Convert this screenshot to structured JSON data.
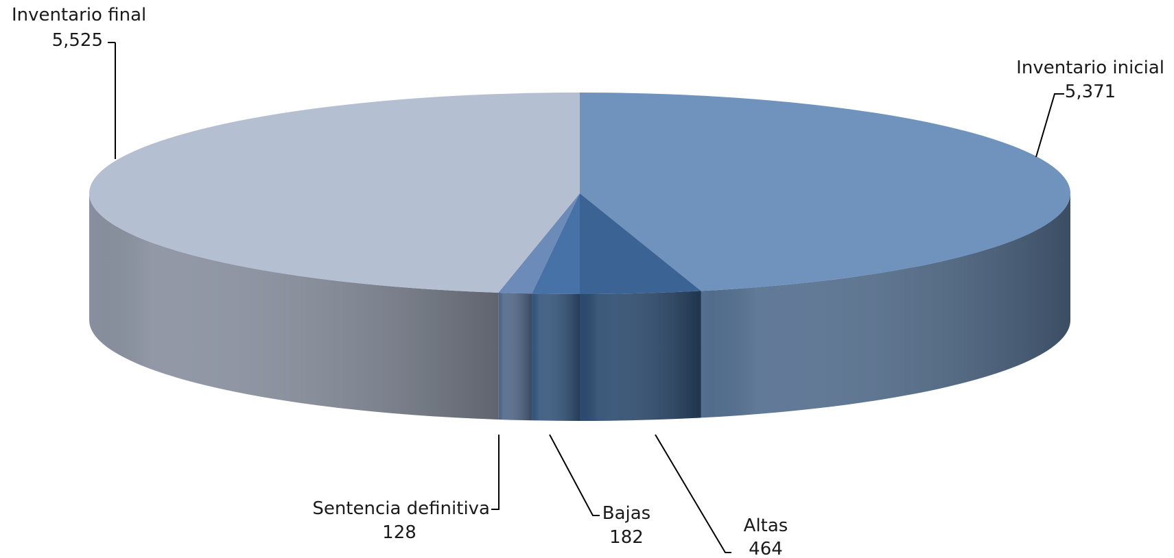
{
  "chart_data": {
    "type": "pie",
    "style": "3d",
    "categories": [
      "Inventario inicial",
      "Altas",
      "Bajas",
      "Sentencia definitiva",
      "Inventario final"
    ],
    "values": [
      5371,
      464,
      182,
      128,
      5525
    ],
    "value_labels": [
      "5,371",
      "464",
      "182",
      "128",
      "5,525"
    ],
    "colors": [
      "#6f93bd",
      "#3b6494",
      "#4672a7",
      "#6d8bb8",
      "#b5bfd2"
    ],
    "title": ""
  }
}
